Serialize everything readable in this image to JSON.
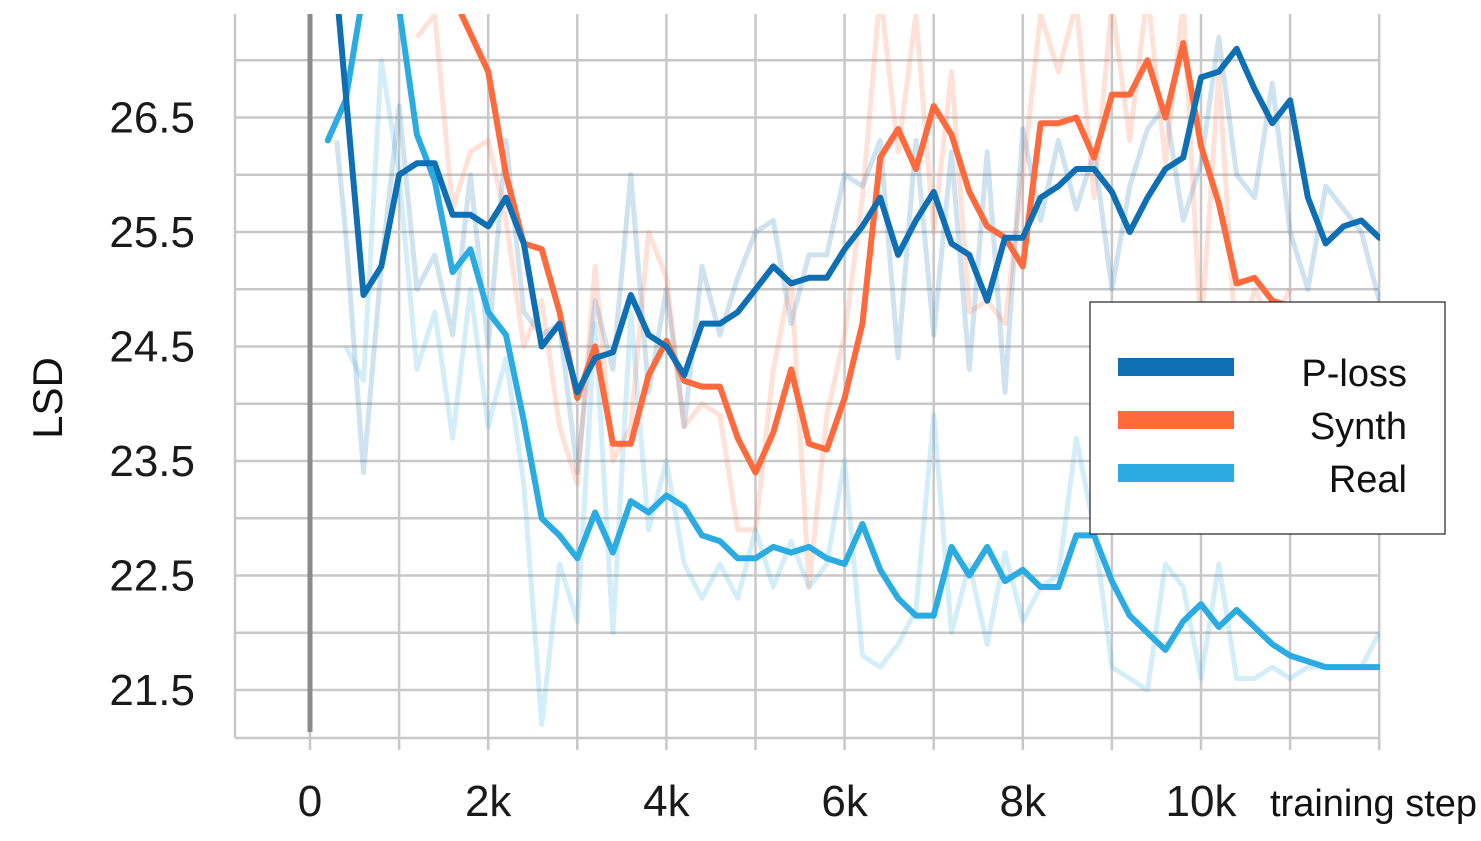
{
  "chart_data": {
    "type": "line",
    "xlabel": "training step",
    "ylabel": "LSD",
    "xlim": [
      -850,
      12000
    ],
    "ylim": [
      21.1,
      27.5
    ],
    "x_ticks": [
      0,
      1000,
      2000,
      3000,
      4000,
      5000,
      6000,
      7000,
      8000,
      9000,
      10000,
      11000,
      12000
    ],
    "x_tick_labels": [
      {
        "value": 0,
        "label": "0"
      },
      {
        "value": 2000,
        "label": "2k"
      },
      {
        "value": 4000,
        "label": "4k"
      },
      {
        "value": 6000,
        "label": "6k"
      },
      {
        "value": 8000,
        "label": "8k"
      },
      {
        "value": 10000,
        "label": "10k"
      }
    ],
    "y_ticks": [
      21.5,
      22.0,
      22.5,
      23.0,
      23.5,
      24.0,
      24.5,
      25.0,
      25.5,
      26.0,
      26.5,
      27.0
    ],
    "y_tick_labels": [
      "21.5",
      "22.5",
      "23.5",
      "24.5",
      "25.5",
      "26.5"
    ],
    "y_tick_label_values": [
      21.5,
      22.5,
      23.5,
      24.5,
      25.5,
      26.5
    ],
    "grid": true,
    "legend_position": "right",
    "series": [
      {
        "name": "P-loss",
        "color": "#0f6fb4",
        "x": [
          300,
          600,
          800,
          1000,
          1200,
          1400,
          1600,
          1800,
          2000,
          2200,
          2400,
          2600,
          2800,
          3000,
          3200,
          3400,
          3600,
          3800,
          4000,
          4200,
          4400,
          4600,
          4800,
          5000,
          5200,
          5400,
          5600,
          5800,
          6000,
          6200,
          6400,
          6600,
          6800,
          7000,
          7200,
          7400,
          7600,
          7800,
          8000,
          8200,
          8400,
          8600,
          8800,
          9000,
          9200,
          9400,
          9600,
          9800,
          10000,
          10200,
          10400,
          10600,
          10800,
          11000,
          11200,
          11400,
          11600,
          11800,
          12000
        ],
        "values": [
          27.6,
          24.95,
          25.2,
          26.0,
          26.1,
          26.1,
          25.65,
          25.65,
          25.55,
          25.8,
          25.4,
          24.5,
          24.7,
          24.1,
          24.4,
          24.45,
          24.95,
          24.6,
          24.5,
          24.25,
          24.7,
          24.7,
          24.8,
          25.0,
          25.2,
          25.05,
          25.1,
          25.1,
          25.35,
          25.55,
          25.8,
          25.3,
          25.6,
          25.85,
          25.4,
          25.3,
          24.9,
          25.45,
          25.45,
          25.8,
          25.9,
          26.05,
          26.05,
          25.85,
          25.5,
          25.8,
          26.05,
          26.15,
          26.85,
          26.9,
          27.1,
          26.75,
          26.45,
          26.65,
          25.8,
          25.4,
          25.55,
          25.6,
          25.45
        ]
      },
      {
        "name": "Synth",
        "color": "#ff6a3d",
        "x": [
          1700,
          2000,
          2200,
          2400,
          2600,
          2800,
          3000,
          3200,
          3400,
          3600,
          3800,
          4000,
          4200,
          4400,
          4600,
          4800,
          5000,
          5200,
          5400,
          5600,
          5800,
          6000,
          6200,
          6400,
          6600,
          6800,
          7000,
          7200,
          7400,
          7600,
          7800,
          8000,
          8200,
          8400,
          8600,
          8800,
          9000,
          9200,
          9400,
          9600,
          9800,
          10000,
          10200,
          10400,
          10600,
          10800,
          11000
        ],
        "values": [
          27.4,
          26.9,
          26.0,
          25.4,
          25.35,
          24.8,
          24.05,
          24.5,
          23.65,
          23.65,
          24.25,
          24.55,
          24.2,
          24.15,
          24.15,
          23.7,
          23.4,
          23.75,
          24.3,
          23.65,
          23.6,
          24.05,
          24.7,
          26.15,
          26.4,
          26.05,
          26.6,
          26.35,
          25.85,
          25.55,
          25.45,
          25.2,
          26.45,
          26.45,
          26.5,
          26.15,
          26.7,
          26.7,
          27.0,
          26.5,
          27.15,
          26.25,
          25.75,
          25.05,
          25.1,
          24.9,
          24.85
        ]
      },
      {
        "name": "Real",
        "color": "#2aabe2",
        "x": [
          200,
          400,
          600,
          800,
          1000,
          1200,
          1400,
          1600,
          1800,
          2000,
          2200,
          2400,
          2600,
          2800,
          3000,
          3200,
          3400,
          3600,
          3800,
          4000,
          4200,
          4400,
          4600,
          4800,
          5000,
          5200,
          5400,
          5600,
          5800,
          6000,
          6200,
          6400,
          6600,
          6800,
          7000,
          7200,
          7400,
          7600,
          7800,
          8000,
          8200,
          8400,
          8600,
          8800,
          9000,
          9200,
          9400,
          9600,
          9800,
          10000,
          10200,
          10400,
          10600,
          10800,
          11000,
          11200,
          11400,
          11600,
          11800,
          12000
        ],
        "values": [
          26.3,
          26.65,
          27.6,
          27.6,
          27.45,
          26.35,
          25.95,
          25.15,
          25.35,
          24.8,
          24.6,
          23.85,
          23.0,
          22.85,
          22.65,
          23.05,
          22.7,
          23.15,
          23.05,
          23.2,
          23.1,
          22.85,
          22.8,
          22.65,
          22.65,
          22.75,
          22.7,
          22.75,
          22.65,
          22.6,
          22.95,
          22.55,
          22.3,
          22.15,
          22.15,
          22.75,
          22.5,
          22.75,
          22.45,
          22.55,
          22.4,
          22.4,
          22.85,
          22.85,
          22.45,
          22.15,
          22.0,
          21.85,
          22.1,
          22.25,
          22.05,
          22.2,
          22.05,
          21.9,
          21.8,
          21.75,
          21.7,
          21.7,
          21.7,
          21.7
        ]
      }
    ],
    "raw_series": [
      {
        "color": "#0f6fb4",
        "opacity": 0.2,
        "x": [
          300,
          400,
          600,
          800,
          1000,
          1200,
          1400,
          1600,
          1800,
          2000,
          2200,
          2400,
          2600,
          2800,
          3000,
          3200,
          3400,
          3600,
          3800,
          4000,
          4200,
          4400,
          4600,
          4800,
          5000,
          5200,
          5400,
          5600,
          5800,
          6000,
          6200,
          6400,
          6600,
          6800,
          7000,
          7200,
          7400,
          7600,
          7800,
          8000,
          8200,
          8400,
          8600,
          8800,
          9000,
          9200,
          9400,
          9600,
          9800,
          10000,
          10200,
          10400,
          10600,
          10800,
          11000,
          11200,
          11400,
          11600,
          11800,
          12000
        ],
        "values": [
          26.3,
          25.5,
          23.4,
          25.2,
          26.6,
          25.0,
          25.3,
          24.6,
          26.0,
          24.5,
          26.3,
          24.8,
          24.6,
          24.7,
          23.4,
          24.9,
          24.3,
          26.0,
          24.1,
          25.0,
          23.8,
          25.2,
          24.6,
          25.1,
          25.5,
          25.6,
          24.7,
          25.3,
          25.3,
          26.0,
          25.9,
          26.3,
          24.4,
          26.3,
          24.6,
          26.2,
          24.3,
          26.2,
          24.1,
          26.4,
          25.6,
          26.3,
          25.7,
          26.2,
          25.0,
          25.9,
          26.4,
          26.6,
          25.6,
          26.1,
          27.2,
          26.0,
          25.8,
          26.8,
          25.5,
          25.0,
          25.9,
          25.7,
          25.5,
          24.9
        ]
      },
      {
        "color": "#ff6a3d",
        "opacity": 0.2,
        "x": [
          1200,
          1400,
          1600,
          1800,
          2000,
          2200,
          2400,
          2600,
          2800,
          3000,
          3200,
          3400,
          3600,
          3800,
          4000,
          4200,
          4400,
          4600,
          4800,
          5000,
          5200,
          5400,
          5600,
          5800,
          6000,
          6200,
          6400,
          6600,
          6800,
          7000,
          7200,
          7400,
          7600,
          7800,
          8000,
          8200,
          8400,
          8600,
          8800,
          9000,
          9200,
          9400,
          9600,
          9800,
          10000,
          10200,
          10400,
          10600,
          10800,
          11000
        ],
        "values": [
          27.2,
          27.4,
          25.7,
          26.2,
          26.3,
          25.6,
          24.5,
          24.9,
          23.8,
          23.3,
          25.2,
          23.5,
          23.8,
          25.5,
          25.1,
          23.8,
          24.0,
          23.9,
          22.9,
          22.9,
          24.3,
          25.1,
          22.4,
          23.9,
          24.6,
          25.8,
          27.6,
          26.2,
          27.4,
          25.5,
          26.9,
          24.8,
          24.9,
          24.7,
          26.0,
          27.4,
          26.9,
          27.5,
          25.8,
          27.5,
          26.3,
          27.6,
          26.1,
          27.5,
          24.6,
          26.9,
          24.4,
          25.0,
          24.7,
          25.0
        ]
      },
      {
        "color": "#2aabe2",
        "opacity": 0.2,
        "x": [
          400,
          600,
          800,
          1000,
          1200,
          1400,
          1600,
          1800,
          2000,
          2200,
          2400,
          2600,
          2800,
          3000,
          3200,
          3400,
          3600,
          3800,
          4000,
          4200,
          4400,
          4600,
          4800,
          5000,
          5200,
          5400,
          5600,
          5800,
          6000,
          6200,
          6400,
          6600,
          6800,
          7000,
          7200,
          7400,
          7600,
          7800,
          8000,
          8200,
          8400,
          8600,
          8800,
          9000,
          9200,
          9400,
          9600,
          9800,
          10000,
          10200,
          10400,
          10600,
          10800,
          11000,
          11200,
          11400,
          11600,
          11800,
          12000
        ],
        "values": [
          24.5,
          24.2,
          27.0,
          26.0,
          24.3,
          24.8,
          23.7,
          25.0,
          23.8,
          24.4,
          23.3,
          21.2,
          22.6,
          22.1,
          24.7,
          22.0,
          24.8,
          22.9,
          23.5,
          22.6,
          22.3,
          22.6,
          22.3,
          22.9,
          22.4,
          22.8,
          22.4,
          22.6,
          23.5,
          21.8,
          21.7,
          21.9,
          22.2,
          23.9,
          22.0,
          22.6,
          21.9,
          22.7,
          22.1,
          22.4,
          22.5,
          23.7,
          22.9,
          21.7,
          21.6,
          21.5,
          22.6,
          22.4,
          21.6,
          22.6,
          21.6,
          21.6,
          21.7,
          21.6,
          21.7,
          21.7,
          21.7,
          21.7,
          22.0
        ]
      }
    ]
  }
}
